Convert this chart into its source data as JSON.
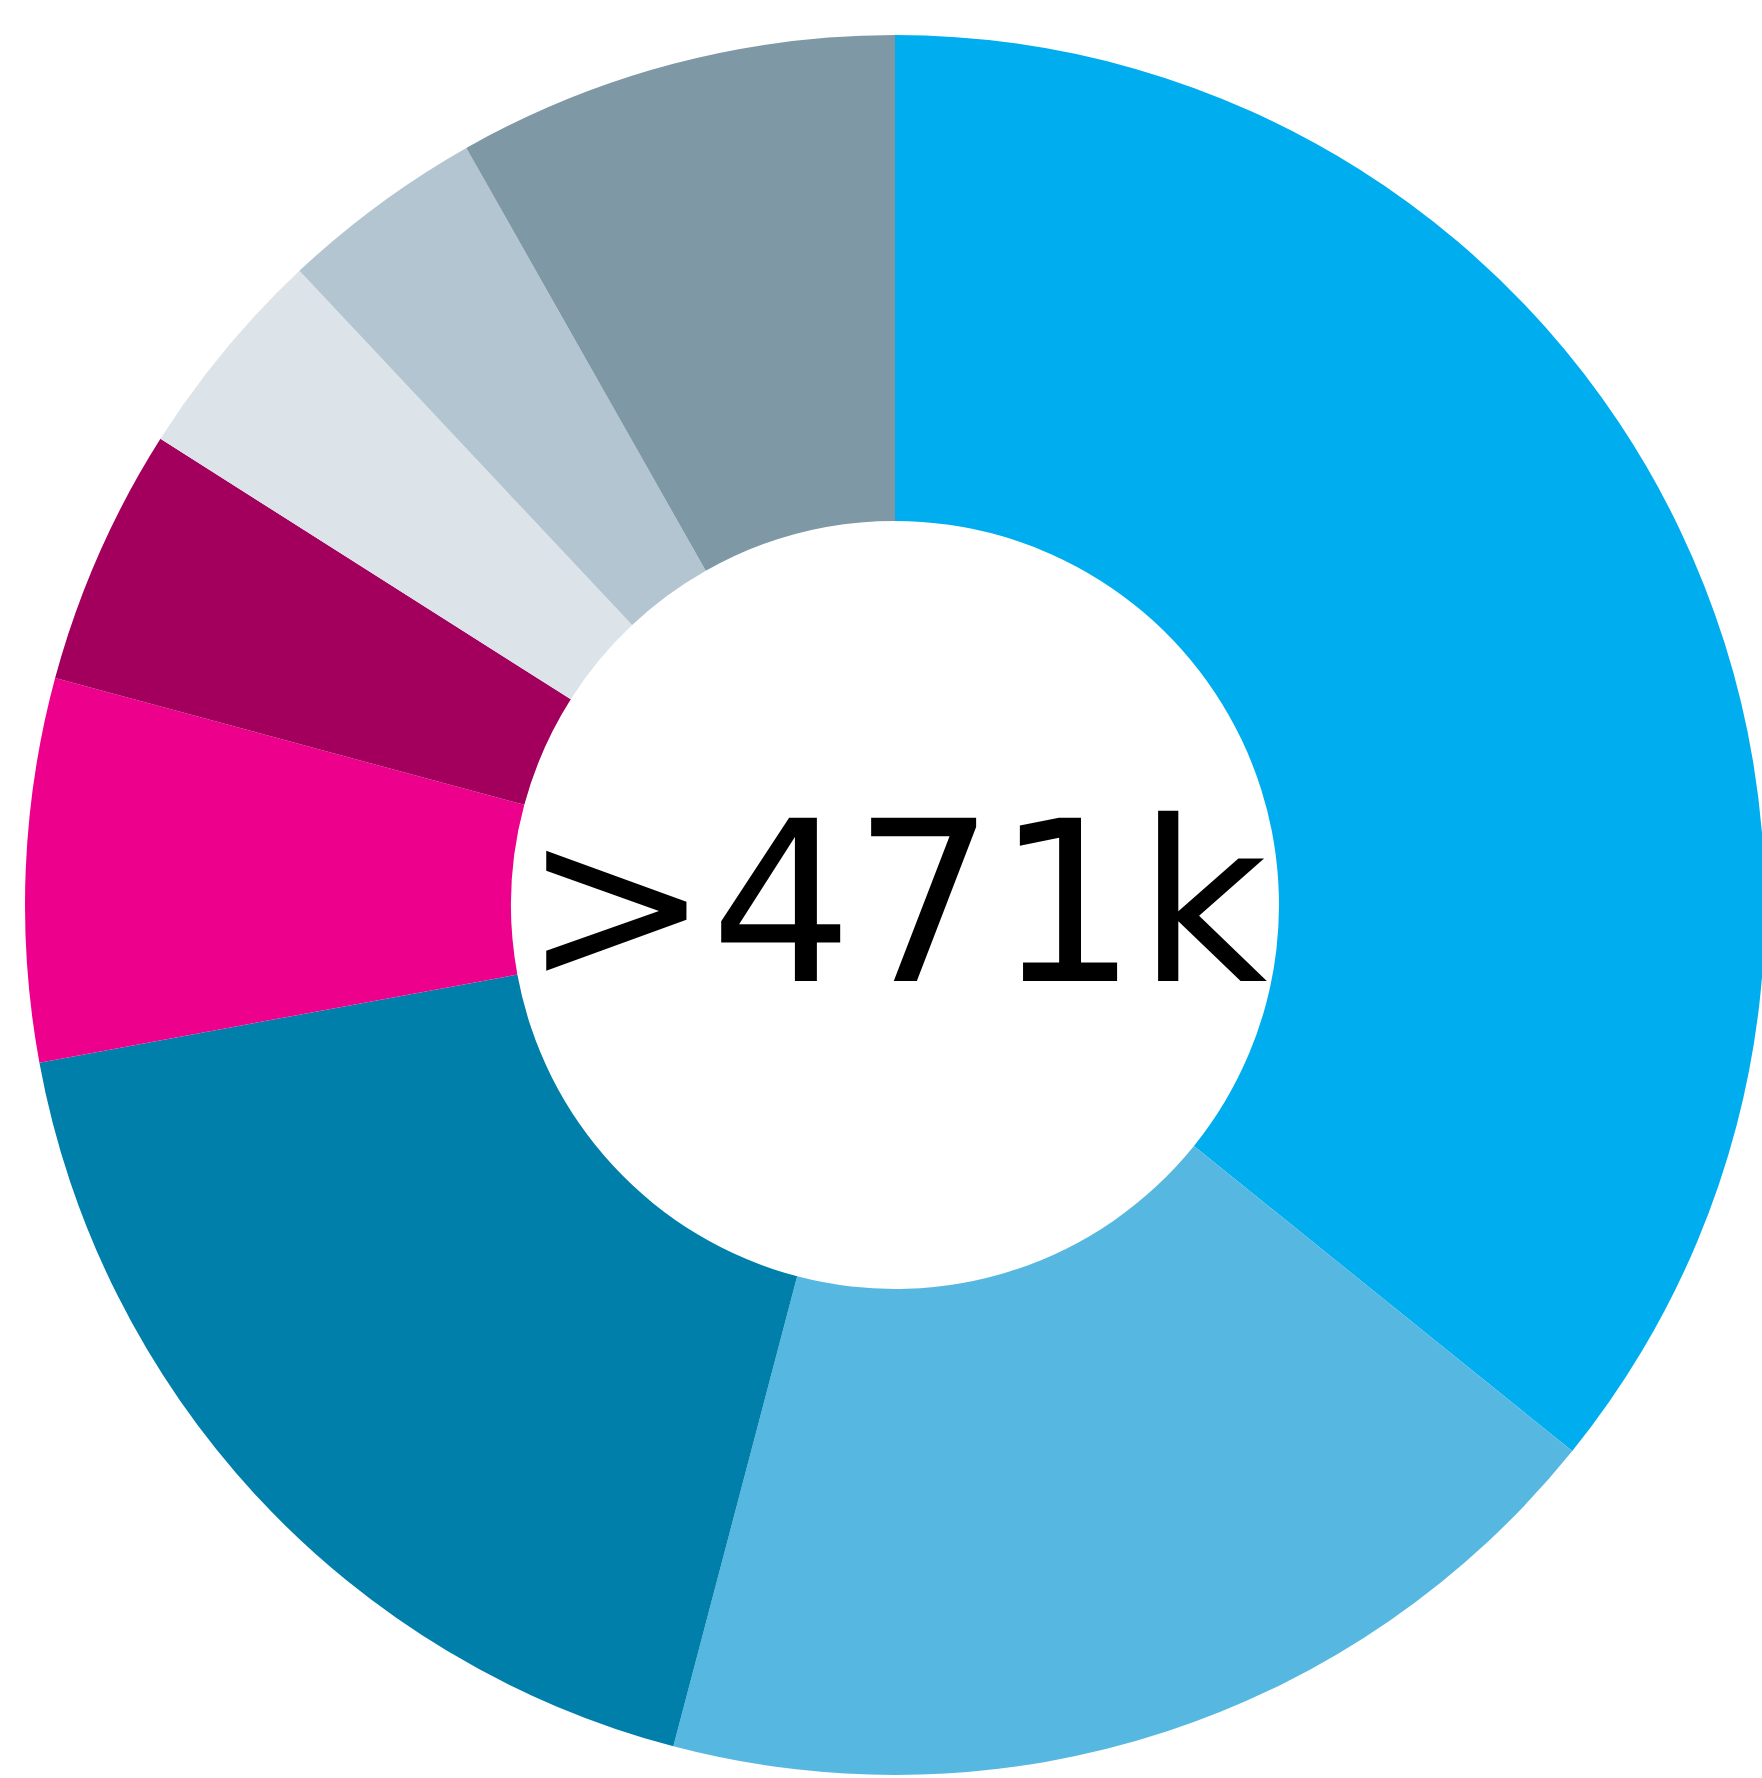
{
  "chart_data": {
    "type": "donut",
    "categories": [
      null,
      null,
      null,
      null,
      null,
      null,
      null,
      null
    ],
    "values": [
      35.8,
      18.3,
      18.0,
      7.1,
      4.8,
      4.0,
      3.8,
      8.2
    ],
    "colors": [
      "#00aeef",
      "#56b8e0",
      "#007fab",
      "#ec008c",
      "#a3005e",
      "#dce4ea",
      "#b3c5d0",
      "#7f98a6"
    ],
    "annotations": [
      ">471k"
    ]
  }
}
